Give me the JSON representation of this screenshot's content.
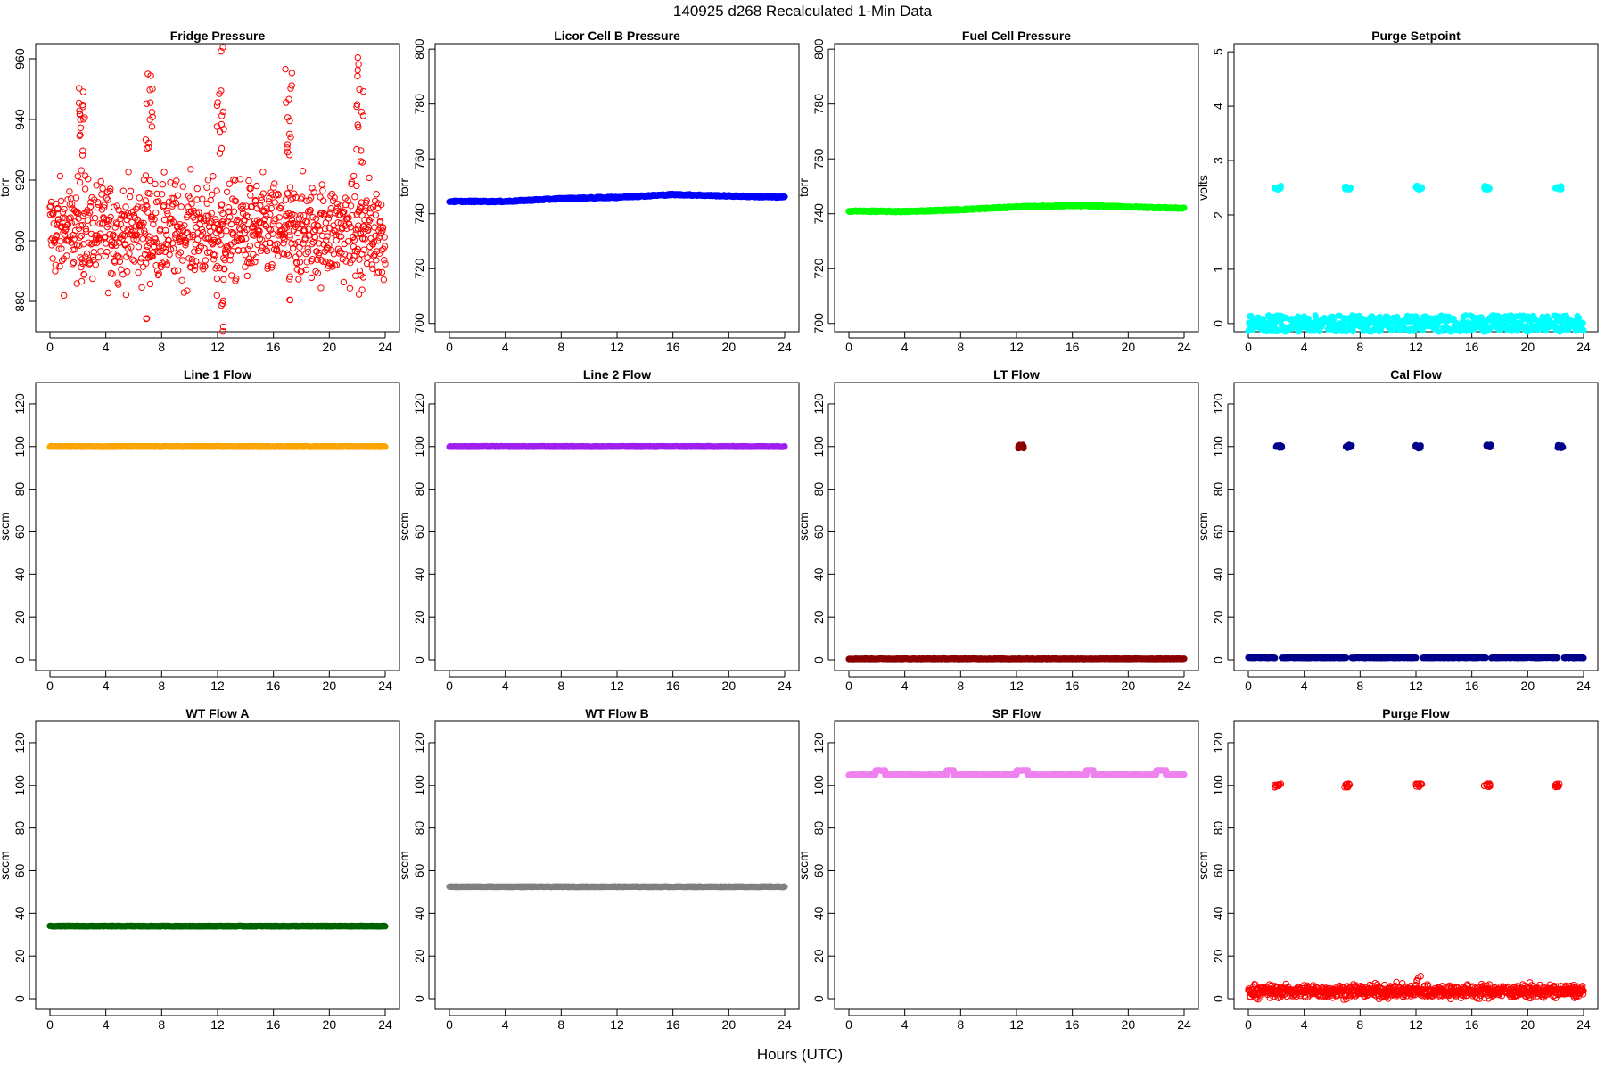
{
  "title": "140925   d268   Recalculated 1-Min Data",
  "xaxis_title": "Hours (UTC)",
  "chart_data": [
    {
      "id": "fridge",
      "type": "scatter",
      "title": "Fridge Pressure",
      "ylabel": "torr",
      "color": "#ff0000",
      "marker": "open",
      "xlim": [
        0,
        24
      ],
      "ylim": [
        870,
        965
      ],
      "xticks": [
        0,
        4,
        8,
        12,
        16,
        20,
        24
      ],
      "yticks": [
        880,
        900,
        920,
        940,
        960
      ],
      "baseline_segments": [
        [
          0,
          24,
          903
        ]
      ],
      "baseline_noise": 8,
      "spikes": [
        {
          "x": 2.3,
          "values": [
            922,
            928,
            935,
            940,
            944,
            946,
            950,
            942,
            938
          ]
        },
        {
          "x": 7.1,
          "values": [
            875,
            920,
            930,
            938,
            942,
            946,
            950,
            954,
            934
          ]
        },
        {
          "x": 12.2,
          "values": [
            872,
            878,
            882,
            888,
            930,
            936,
            942,
            946,
            950,
            962,
            938
          ]
        },
        {
          "x": 17.1,
          "values": [
            880,
            888,
            928,
            935,
            940,
            946,
            950,
            956,
            931
          ]
        },
        {
          "x": 22.2,
          "values": [
            882,
            888,
            926,
            930,
            938,
            944,
            950,
            956,
            960,
            942
          ]
        }
      ]
    },
    {
      "id": "licor",
      "type": "scatter",
      "title": "Licor Cell B Pressure",
      "ylabel": "torr",
      "color": "#0000ff",
      "marker": "filled",
      "xlim": [
        0,
        24
      ],
      "ylim": [
        697,
        802
      ],
      "xticks": [
        0,
        4,
        8,
        12,
        16,
        20,
        24
      ],
      "yticks": [
        700,
        720,
        740,
        760,
        780,
        800
      ],
      "trend": [
        [
          0,
          744.5
        ],
        [
          4,
          744.5
        ],
        [
          8,
          745.5
        ],
        [
          12,
          746.0
        ],
        [
          16,
          747.0
        ],
        [
          20,
          746.5
        ],
        [
          24,
          746.0
        ]
      ]
    },
    {
      "id": "fuelcell",
      "type": "scatter",
      "title": "Fuel Cell Pressure",
      "ylabel": "torr",
      "color": "#00ff00",
      "marker": "filled",
      "xlim": [
        0,
        24
      ],
      "ylim": [
        697,
        802
      ],
      "xticks": [
        0,
        4,
        8,
        12,
        16,
        20,
        24
      ],
      "yticks": [
        700,
        720,
        740,
        760,
        780,
        800
      ],
      "trend": [
        [
          0,
          741.0
        ],
        [
          4,
          740.8
        ],
        [
          8,
          741.5
        ],
        [
          12,
          742.5
        ],
        [
          16,
          743.0
        ],
        [
          20,
          742.5
        ],
        [
          24,
          742.0
        ]
      ]
    },
    {
      "id": "purgesetpoint",
      "type": "scatter",
      "title": "Purge Setpoint",
      "ylabel": "volts",
      "color": "#00ffff",
      "marker": "filled",
      "xlim": [
        0,
        24
      ],
      "ylim": [
        -0.15,
        5.15
      ],
      "xticks": [
        0,
        4,
        8,
        12,
        16,
        20,
        24
      ],
      "yticks": [
        0,
        1,
        2,
        3,
        4,
        5
      ],
      "baseline_segments": [
        [
          0,
          24,
          0
        ]
      ],
      "clusters": [
        {
          "x": 2.1,
          "y": 2.5
        },
        {
          "x": 7.1,
          "y": 2.5
        },
        {
          "x": 12.2,
          "y": 2.5
        },
        {
          "x": 17.1,
          "y": 2.5
        },
        {
          "x": 22.2,
          "y": 2.5
        }
      ]
    },
    {
      "id": "line1",
      "type": "scatter",
      "title": "Line 1 Flow",
      "ylabel": "sccm",
      "color": "#ffa500",
      "marker": "filled",
      "xlim": [
        0,
        24
      ],
      "ylim": [
        -5,
        130
      ],
      "xticks": [
        0,
        4,
        8,
        12,
        16,
        20,
        24
      ],
      "yticks": [
        0,
        20,
        40,
        60,
        80,
        100,
        120
      ],
      "baseline_segments": [
        [
          0,
          24,
          100
        ]
      ]
    },
    {
      "id": "line2",
      "type": "scatter",
      "title": "Line 2 Flow",
      "ylabel": "sccm",
      "color": "#a020f0",
      "marker": "filled",
      "xlim": [
        0,
        24
      ],
      "ylim": [
        -5,
        130
      ],
      "xticks": [
        0,
        4,
        8,
        12,
        16,
        20,
        24
      ],
      "yticks": [
        0,
        20,
        40,
        60,
        80,
        100,
        120
      ],
      "baseline_segments": [
        [
          0,
          24,
          100
        ]
      ]
    },
    {
      "id": "ltflow",
      "type": "scatter",
      "title": "LT Flow",
      "ylabel": "sccm",
      "color": "#8b0000",
      "marker": "filled",
      "xlim": [
        0,
        24
      ],
      "ylim": [
        -5,
        130
      ],
      "xticks": [
        0,
        4,
        8,
        12,
        16,
        20,
        24
      ],
      "yticks": [
        0,
        20,
        40,
        60,
        80,
        100,
        120
      ],
      "baseline_segments": [
        [
          0,
          24,
          0.5
        ]
      ],
      "clusters": [
        {
          "x": 12.3,
          "y": 100
        }
      ]
    },
    {
      "id": "calflow",
      "type": "scatter",
      "title": "Cal Flow",
      "ylabel": "sccm",
      "color": "#00008b",
      "marker": "filled",
      "xlim": [
        0,
        24
      ],
      "ylim": [
        -5,
        130
      ],
      "xticks": [
        0,
        4,
        8,
        12,
        16,
        20,
        24
      ],
      "yticks": [
        0,
        20,
        40,
        60,
        80,
        100,
        120
      ],
      "baseline_segments": [
        [
          0,
          1.9,
          1
        ],
        [
          2.4,
          7.0,
          1
        ],
        [
          7.4,
          12.0,
          1
        ],
        [
          12.5,
          17.0,
          1
        ],
        [
          17.4,
          22.1,
          1
        ],
        [
          22.6,
          24,
          1
        ]
      ],
      "clusters": [
        {
          "x": 2.2,
          "y": 100
        },
        {
          "x": 7.2,
          "y": 100
        },
        {
          "x": 12.2,
          "y": 100
        },
        {
          "x": 17.2,
          "y": 100
        },
        {
          "x": 22.3,
          "y": 100
        }
      ]
    },
    {
      "id": "wtflowa",
      "type": "scatter",
      "title": "WT Flow A",
      "ylabel": "sccm",
      "color": "#006400",
      "marker": "filled",
      "xlim": [
        0,
        24
      ],
      "ylim": [
        -5,
        130
      ],
      "xticks": [
        0,
        4,
        8,
        12,
        16,
        20,
        24
      ],
      "yticks": [
        0,
        20,
        40,
        60,
        80,
        100,
        120
      ],
      "baseline_segments": [
        [
          0,
          24,
          34
        ]
      ]
    },
    {
      "id": "wtflowb",
      "type": "scatter",
      "title": "WT Flow B",
      "ylabel": "sccm",
      "color": "#808080",
      "marker": "filled",
      "xlim": [
        0,
        24
      ],
      "ylim": [
        -5,
        130
      ],
      "xticks": [
        0,
        4,
        8,
        12,
        16,
        20,
        24
      ],
      "yticks": [
        0,
        20,
        40,
        60,
        80,
        100,
        120
      ],
      "baseline_segments": [
        [
          0,
          24,
          52.5
        ]
      ]
    },
    {
      "id": "spflow",
      "type": "scatter",
      "title": "SP Flow",
      "ylabel": "sccm",
      "color": "#ee82ee",
      "marker": "filled",
      "xlim": [
        0,
        24
      ],
      "ylim": [
        -5,
        130
      ],
      "xticks": [
        0,
        4,
        8,
        12,
        16,
        20,
        24
      ],
      "yticks": [
        0,
        20,
        40,
        60,
        80,
        100,
        120
      ],
      "baseline_segments": [
        [
          0,
          1.9,
          105
        ],
        [
          1.9,
          2.6,
          107
        ],
        [
          2.6,
          7.0,
          105
        ],
        [
          7.0,
          7.5,
          107
        ],
        [
          7.5,
          12.0,
          105
        ],
        [
          12.0,
          12.8,
          107
        ],
        [
          12.8,
          17.0,
          105
        ],
        [
          17.0,
          17.5,
          107
        ],
        [
          17.5,
          22.0,
          105
        ],
        [
          22.0,
          22.7,
          107
        ],
        [
          22.7,
          24,
          105
        ]
      ]
    },
    {
      "id": "purgeflow",
      "type": "scatter",
      "title": "Purge Flow",
      "ylabel": "sccm",
      "color": "#ff0000",
      "marker": "open",
      "xlim": [
        0,
        24
      ],
      "ylim": [
        -5,
        130
      ],
      "xticks": [
        0,
        4,
        8,
        12,
        16,
        20,
        24
      ],
      "yticks": [
        0,
        20,
        40,
        60,
        80,
        100,
        120
      ],
      "baseline_segments": [
        [
          0,
          24,
          3.5
        ]
      ],
      "baseline_noise": 1.5,
      "clusters": [
        {
          "x": 2.1,
          "y": 100
        },
        {
          "x": 7.1,
          "y": 100
        },
        {
          "x": 12.2,
          "y": 100
        },
        {
          "x": 17.1,
          "y": 100
        },
        {
          "x": 22.2,
          "y": 100
        }
      ],
      "spikes": [
        {
          "x": 12.3,
          "values": [
            8,
            9
          ]
        }
      ]
    }
  ]
}
